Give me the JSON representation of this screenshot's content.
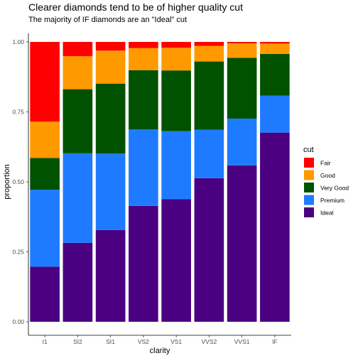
{
  "chart_data": {
    "type": "bar",
    "stacked": "proportion",
    "title": "Clearer diamonds tend to be of higher quality cut",
    "subtitle": "The majority of IF diamonds are an \"Ideal\" cut",
    "xlabel": "clarity",
    "ylabel": "proportion",
    "ylim": [
      0,
      1
    ],
    "yticks": [
      "0.00",
      "0.25",
      "0.50",
      "0.75",
      "1.00"
    ],
    "categories": [
      "I1",
      "SI2",
      "SI1",
      "VS2",
      "VS1",
      "VVS2",
      "VVS1",
      "IF"
    ],
    "legend": {
      "title": "cut",
      "position": "right"
    },
    "grid": false,
    "series": [
      {
        "name": "Fair",
        "color": "#ff0000",
        "values": [
          0.285,
          0.051,
          0.031,
          0.022,
          0.021,
          0.014,
          0.005,
          0.006
        ]
      },
      {
        "name": "Good",
        "color": "#ff9900",
        "values": [
          0.13,
          0.118,
          0.118,
          0.079,
          0.081,
          0.056,
          0.052,
          0.037
        ]
      },
      {
        "name": "Very Good",
        "color": "#005200",
        "values": [
          0.113,
          0.229,
          0.25,
          0.212,
          0.217,
          0.244,
          0.217,
          0.149
        ]
      },
      {
        "name": "Premium",
        "color": "#1e7bff",
        "values": [
          0.275,
          0.32,
          0.273,
          0.273,
          0.243,
          0.173,
          0.167,
          0.132
        ]
      },
      {
        "name": "Ideal",
        "color": "#4a0080",
        "values": [
          0.197,
          0.282,
          0.328,
          0.414,
          0.438,
          0.513,
          0.559,
          0.676
        ]
      }
    ]
  }
}
